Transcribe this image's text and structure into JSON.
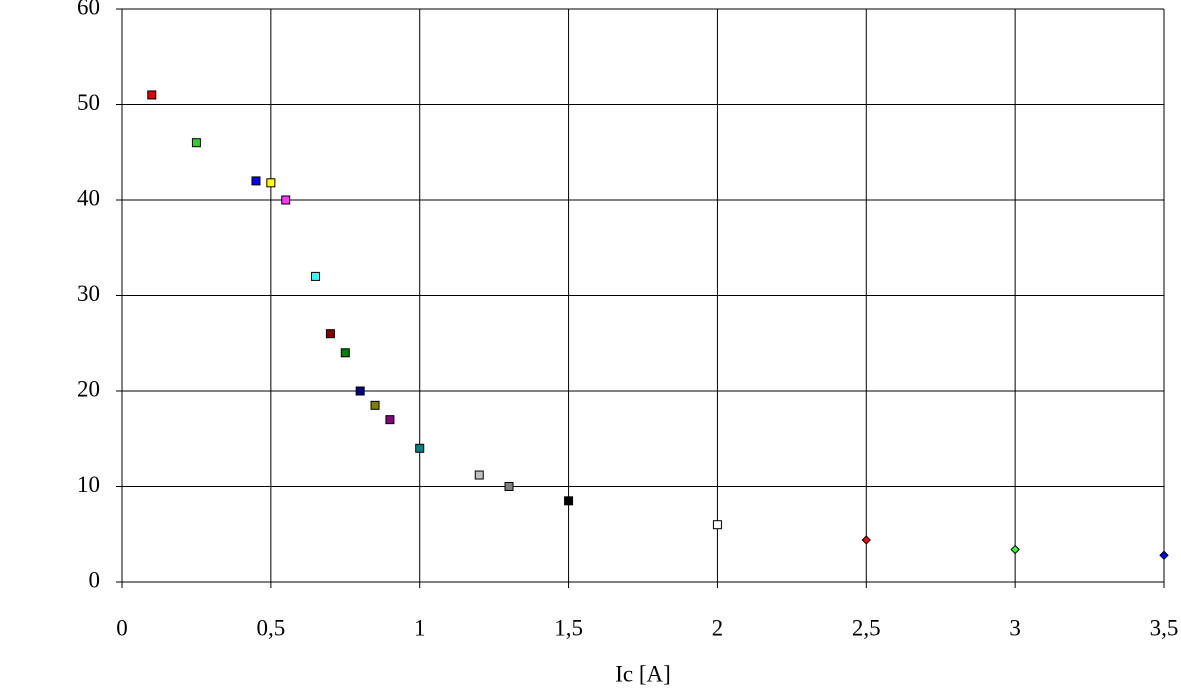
{
  "chart_data": {
    "type": "scatter",
    "x_label": "Ic [A]",
    "x": [
      0.1,
      0.25,
      0.45,
      0.5,
      0.55,
      0.65,
      0.7,
      0.75,
      0.8,
      0.85,
      0.9,
      1.0,
      1.2,
      1.3,
      1.5,
      2.0,
      2.5,
      3.0,
      3.5
    ],
    "y": [
      51,
      46,
      42,
      41.8,
      40,
      32,
      26,
      24,
      20,
      18.5,
      17,
      14,
      11.2,
      10,
      8.5,
      6,
      4.4,
      3.4,
      2.8
    ],
    "colors": [
      "#e00000",
      "#33cc33",
      "#0000ff",
      "#ffff00",
      "#ff33ff",
      "#33ffff",
      "#800000",
      "#008000",
      "#000080",
      "#808000",
      "#800080",
      "#008080",
      "#c0c0c0",
      "#808080",
      "#000000",
      "#ffffff",
      "#ff0000",
      "#33ff33",
      "#0000ff"
    ],
    "markers": [
      "square",
      "square",
      "square",
      "square",
      "square",
      "square",
      "square",
      "square",
      "square",
      "square",
      "square",
      "square",
      "square",
      "square",
      "square",
      "square",
      "diamond",
      "diamond",
      "diamond"
    ],
    "xlim": [
      0,
      3.5
    ],
    "ylim": [
      0,
      60
    ],
    "xticks": [
      0,
      {
        "value": 0.5,
        "label": "0,5"
      },
      1,
      {
        "value": 1.5,
        "label": "1,5"
      },
      2,
      {
        "value": 2.5,
        "label": "2,5"
      },
      3,
      {
        "value": 3.5,
        "label": "3,5"
      }
    ],
    "yticks": [
      0,
      10,
      20,
      30,
      40,
      50,
      60
    ],
    "grid": true
  }
}
